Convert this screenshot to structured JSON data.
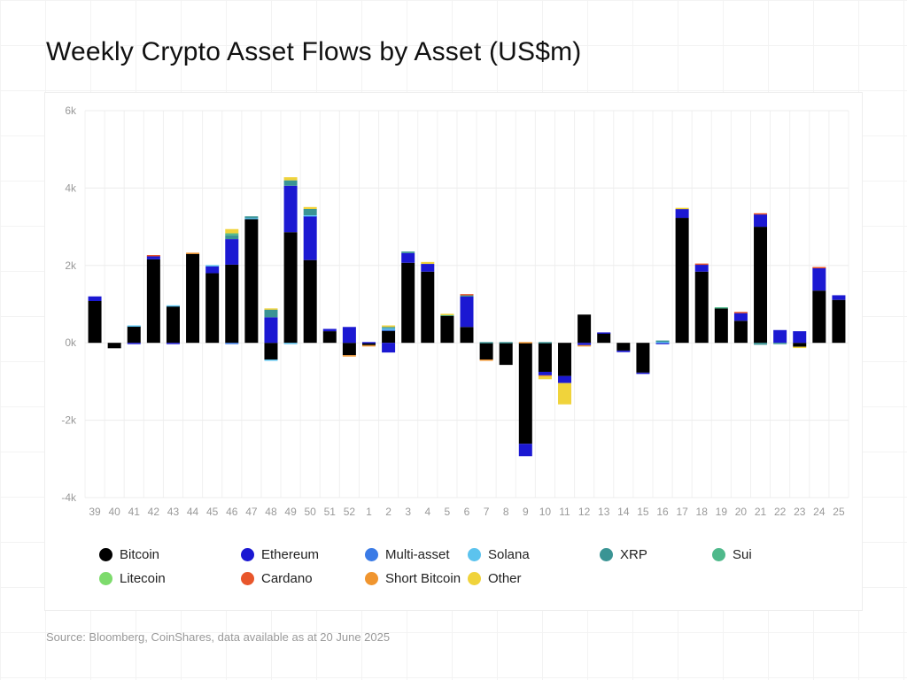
{
  "title": "Weekly Crypto Asset Flows by Asset (US$m)",
  "source": "Source: Bloomberg, CoinShares, data available as at 20 June 2025",
  "chart_data": {
    "type": "bar",
    "stacked": true,
    "title": "Weekly Crypto Asset Flows by Asset (US$m)",
    "xlabel": "",
    "ylabel": "",
    "ylim": [
      -4000,
      6000
    ],
    "yticks": [
      -4000,
      -2000,
      0,
      2000,
      4000,
      6000
    ],
    "ytick_labels": [
      "-4k",
      "-2k",
      "0k",
      "2k",
      "4k",
      "6k"
    ],
    "grid": true,
    "legend_position": "bottom",
    "categories": [
      "39",
      "40",
      "41",
      "42",
      "43",
      "44",
      "45",
      "46",
      "47",
      "48",
      "49",
      "50",
      "51",
      "52",
      "1",
      "2",
      "3",
      "4",
      "5",
      "6",
      "7",
      "8",
      "9",
      "10",
      "11",
      "12",
      "13",
      "14",
      "15",
      "16",
      "17",
      "18",
      "19",
      "20",
      "21",
      "22",
      "23",
      "24",
      "25"
    ],
    "series": [
      {
        "name": "Bitcoin",
        "color": "#000000",
        "values": [
          1080,
          -140,
          430,
          2160,
          950,
          2300,
          1800,
          2020,
          3200,
          -430,
          2860,
          2140,
          300,
          -320,
          -60,
          320,
          2070,
          1840,
          700,
          410,
          -430,
          -570,
          -2610,
          -750,
          -860,
          730,
          250,
          -200,
          -770,
          0,
          3230,
          1840,
          890,
          570,
          3000,
          0,
          -100,
          1350,
          1110
        ]
      },
      {
        "name": "Ethereum",
        "color": "#1b18d2",
        "values": [
          120,
          0,
          -20,
          90,
          -30,
          0,
          180,
          660,
          0,
          660,
          1200,
          1140,
          60,
          410,
          20,
          -250,
          250,
          200,
          0,
          790,
          0,
          0,
          -320,
          -90,
          -180,
          -60,
          20,
          -40,
          -20,
          -20,
          230,
          180,
          0,
          200,
          320,
          330,
          300,
          590,
          120
        ]
      },
      {
        "name": "Multi-asset",
        "color": "#3b7be6",
        "values": [
          0,
          0,
          0,
          0,
          0,
          0,
          0,
          -30,
          0,
          0,
          0,
          0,
          0,
          0,
          0,
          20,
          0,
          0,
          0,
          0,
          0,
          0,
          0,
          0,
          0,
          0,
          0,
          0,
          0,
          0,
          0,
          0,
          0,
          0,
          0,
          0,
          0,
          0,
          0
        ]
      },
      {
        "name": "Solana",
        "color": "#5cc3ee",
        "values": [
          0,
          0,
          20,
          0,
          20,
          0,
          30,
          0,
          30,
          -30,
          -20,
          20,
          0,
          0,
          0,
          40,
          0,
          0,
          0,
          0,
          0,
          0,
          0,
          0,
          0,
          0,
          0,
          0,
          0,
          30,
          0,
          0,
          0,
          0,
          0,
          0,
          0,
          0,
          0
        ]
      },
      {
        "name": "XRP",
        "color": "#3a9494",
        "values": [
          0,
          0,
          0,
          0,
          0,
          0,
          0,
          100,
          40,
          200,
          140,
          160,
          0,
          0,
          0,
          30,
          40,
          0,
          0,
          30,
          20,
          20,
          0,
          20,
          0,
          0,
          0,
          0,
          0,
          30,
          0,
          0,
          0,
          0,
          -50,
          -30,
          0,
          0,
          0
        ]
      },
      {
        "name": "Sui",
        "color": "#4fb98b",
        "values": [
          0,
          0,
          0,
          0,
          0,
          0,
          0,
          50,
          0,
          0,
          0,
          0,
          0,
          0,
          0,
          0,
          0,
          0,
          30,
          0,
          0,
          0,
          0,
          0,
          0,
          0,
          0,
          0,
          0,
          0,
          0,
          0,
          30,
          0,
          0,
          0,
          0,
          0,
          0
        ]
      },
      {
        "name": "Litecoin",
        "color": "#7ddb6c",
        "values": [
          0,
          0,
          0,
          0,
          0,
          0,
          0,
          0,
          0,
          0,
          0,
          0,
          0,
          0,
          0,
          0,
          0,
          0,
          0,
          0,
          0,
          0,
          0,
          0,
          0,
          0,
          0,
          0,
          0,
          0,
          0,
          0,
          0,
          0,
          0,
          0,
          0,
          0,
          0
        ]
      },
      {
        "name": "Cardano",
        "color": "#e8562b",
        "values": [
          0,
          0,
          0,
          20,
          0,
          0,
          0,
          0,
          0,
          0,
          0,
          0,
          0,
          0,
          0,
          0,
          0,
          0,
          0,
          30,
          0,
          0,
          0,
          0,
          0,
          0,
          0,
          0,
          0,
          0,
          0,
          30,
          0,
          30,
          30,
          0,
          0,
          20,
          0
        ]
      },
      {
        "name": "Short Bitcoin",
        "color": "#f0952f",
        "values": [
          0,
          0,
          0,
          0,
          0,
          30,
          0,
          0,
          0,
          0,
          0,
          0,
          0,
          -30,
          -20,
          0,
          0,
          0,
          0,
          0,
          -30,
          0,
          20,
          -30,
          0,
          -20,
          0,
          0,
          0,
          0,
          0,
          0,
          0,
          0,
          0,
          0,
          0,
          0,
          0
        ]
      },
      {
        "name": "Other",
        "color": "#f0d33b",
        "values": [
          0,
          0,
          0,
          0,
          0,
          0,
          0,
          110,
          0,
          30,
          80,
          50,
          0,
          0,
          0,
          40,
          0,
          50,
          20,
          0,
          0,
          0,
          0,
          -70,
          -550,
          0,
          0,
          0,
          0,
          0,
          30,
          0,
          0,
          0,
          0,
          0,
          -30,
          0,
          0
        ]
      }
    ]
  }
}
